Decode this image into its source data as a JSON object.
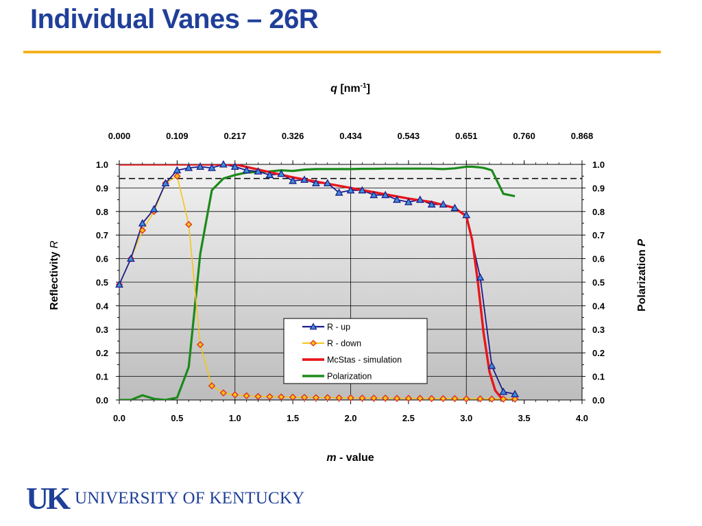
{
  "slide": {
    "title": "Individual Vanes – 26R"
  },
  "logo": {
    "mark": "UK",
    "name": "UNIVERSITY OF KENTUCKY"
  },
  "chart_data": {
    "type": "line",
    "xlabel_italic": "m",
    "xlabel_rest": " - value",
    "top_xlabel_italic": "q",
    "top_xlabel_rest": " [nm",
    "top_xlabel_sup": "-1",
    "top_xlabel_end": "]",
    "ylabel": "Reflectivity ",
    "ylabel_italic": "R",
    "y2label": "Polarization ",
    "y2label_italic": "P",
    "xlim": [
      0,
      4
    ],
    "ylim": [
      0,
      1
    ],
    "y2lim": [
      0,
      1
    ],
    "xticks": [
      "0.0",
      "0.5",
      "1.0",
      "1.5",
      "2.0",
      "2.5",
      "3.0",
      "3.5",
      "4.0"
    ],
    "top_xticks": [
      "0.000",
      "0.109",
      "0.217",
      "0.326",
      "0.434",
      "0.543",
      "0.651",
      "0.760",
      "0.868"
    ],
    "yticks": [
      "0.0",
      "0.1",
      "0.2",
      "0.3",
      "0.4",
      "0.5",
      "0.6",
      "0.7",
      "0.8",
      "0.9",
      "1.0"
    ],
    "grid": true,
    "reference_line": {
      "y": 0.94,
      "style": "dashed"
    },
    "legend_position": "lower-center",
    "series": [
      {
        "name": "R - up",
        "color": "#1a1a8c",
        "marker": "triangle",
        "marker_fill": "#3d8fd6",
        "x": [
          0.0,
          0.1,
          0.2,
          0.3,
          0.4,
          0.5,
          0.6,
          0.7,
          0.8,
          0.9,
          1.0,
          1.1,
          1.2,
          1.3,
          1.4,
          1.5,
          1.6,
          1.7,
          1.8,
          1.9,
          2.0,
          2.1,
          2.2,
          2.3,
          2.4,
          2.5,
          2.6,
          2.7,
          2.8,
          2.9,
          3.0,
          3.12,
          3.22,
          3.32,
          3.42
        ],
        "y": [
          0.49,
          0.6,
          0.75,
          0.81,
          0.92,
          0.975,
          0.985,
          0.99,
          0.985,
          1.0,
          0.99,
          0.975,
          0.97,
          0.955,
          0.96,
          0.93,
          0.935,
          0.92,
          0.92,
          0.88,
          0.89,
          0.89,
          0.87,
          0.87,
          0.85,
          0.84,
          0.85,
          0.83,
          0.83,
          0.815,
          0.785,
          0.52,
          0.145,
          0.035,
          0.025
        ]
      },
      {
        "name": "R - down",
        "color": "#f5c518",
        "marker": "diamond",
        "marker_fill": "#f5c518",
        "marker_stroke": "#e03020",
        "x": [
          0.0,
          0.1,
          0.2,
          0.3,
          0.4,
          0.5,
          0.6,
          0.7,
          0.8,
          0.9,
          1.0,
          1.1,
          1.2,
          1.3,
          1.4,
          1.5,
          1.6,
          1.7,
          1.8,
          1.9,
          2.0,
          2.1,
          2.2,
          2.3,
          2.4,
          2.5,
          2.6,
          2.7,
          2.8,
          2.9,
          3.0,
          3.12,
          3.22,
          3.32,
          3.42
        ],
        "y": [
          0.49,
          0.6,
          0.72,
          0.8,
          0.92,
          0.95,
          0.745,
          0.235,
          0.06,
          0.03,
          0.022,
          0.018,
          0.015,
          0.014,
          0.013,
          0.012,
          0.011,
          0.01,
          0.01,
          0.009,
          0.009,
          0.008,
          0.008,
          0.008,
          0.007,
          0.007,
          0.007,
          0.006,
          0.006,
          0.006,
          0.005,
          0.005,
          0.004,
          0.004,
          0.004
        ]
      },
      {
        "name": "McStas - simulation",
        "color": "#e8161b",
        "marker": "none",
        "x": [
          0.0,
          0.5,
          1.0,
          1.5,
          2.0,
          2.5,
          2.7,
          2.9,
          3.0,
          3.05,
          3.1,
          3.15,
          3.2,
          3.25,
          3.3,
          3.35
        ],
        "y": [
          1.0,
          1.0,
          1.0,
          0.945,
          0.9,
          0.855,
          0.84,
          0.815,
          0.78,
          0.68,
          0.5,
          0.28,
          0.12,
          0.04,
          0.01,
          0.0
        ]
      },
      {
        "name": "Polarization",
        "color": "#1b8a1b",
        "marker": "none",
        "x": [
          0.0,
          0.1,
          0.2,
          0.3,
          0.4,
          0.5,
          0.6,
          0.7,
          0.8,
          0.9,
          1.0,
          1.1,
          1.2,
          1.3,
          1.4,
          1.5,
          1.6,
          1.7,
          1.8,
          1.9,
          2.0,
          2.1,
          2.2,
          2.3,
          2.4,
          2.5,
          2.6,
          2.7,
          2.8,
          2.9,
          3.0,
          3.05,
          3.1,
          3.15,
          3.22,
          3.32,
          3.42
        ],
        "y": [
          0.0,
          0.0,
          0.02,
          0.005,
          0.0,
          0.01,
          0.14,
          0.62,
          0.89,
          0.94,
          0.955,
          0.965,
          0.968,
          0.97,
          0.975,
          0.972,
          0.978,
          0.98,
          0.98,
          0.98,
          0.98,
          0.981,
          0.981,
          0.982,
          0.982,
          0.982,
          0.982,
          0.982,
          0.98,
          0.983,
          0.99,
          0.99,
          0.988,
          0.985,
          0.975,
          0.875,
          0.865
        ]
      }
    ]
  }
}
